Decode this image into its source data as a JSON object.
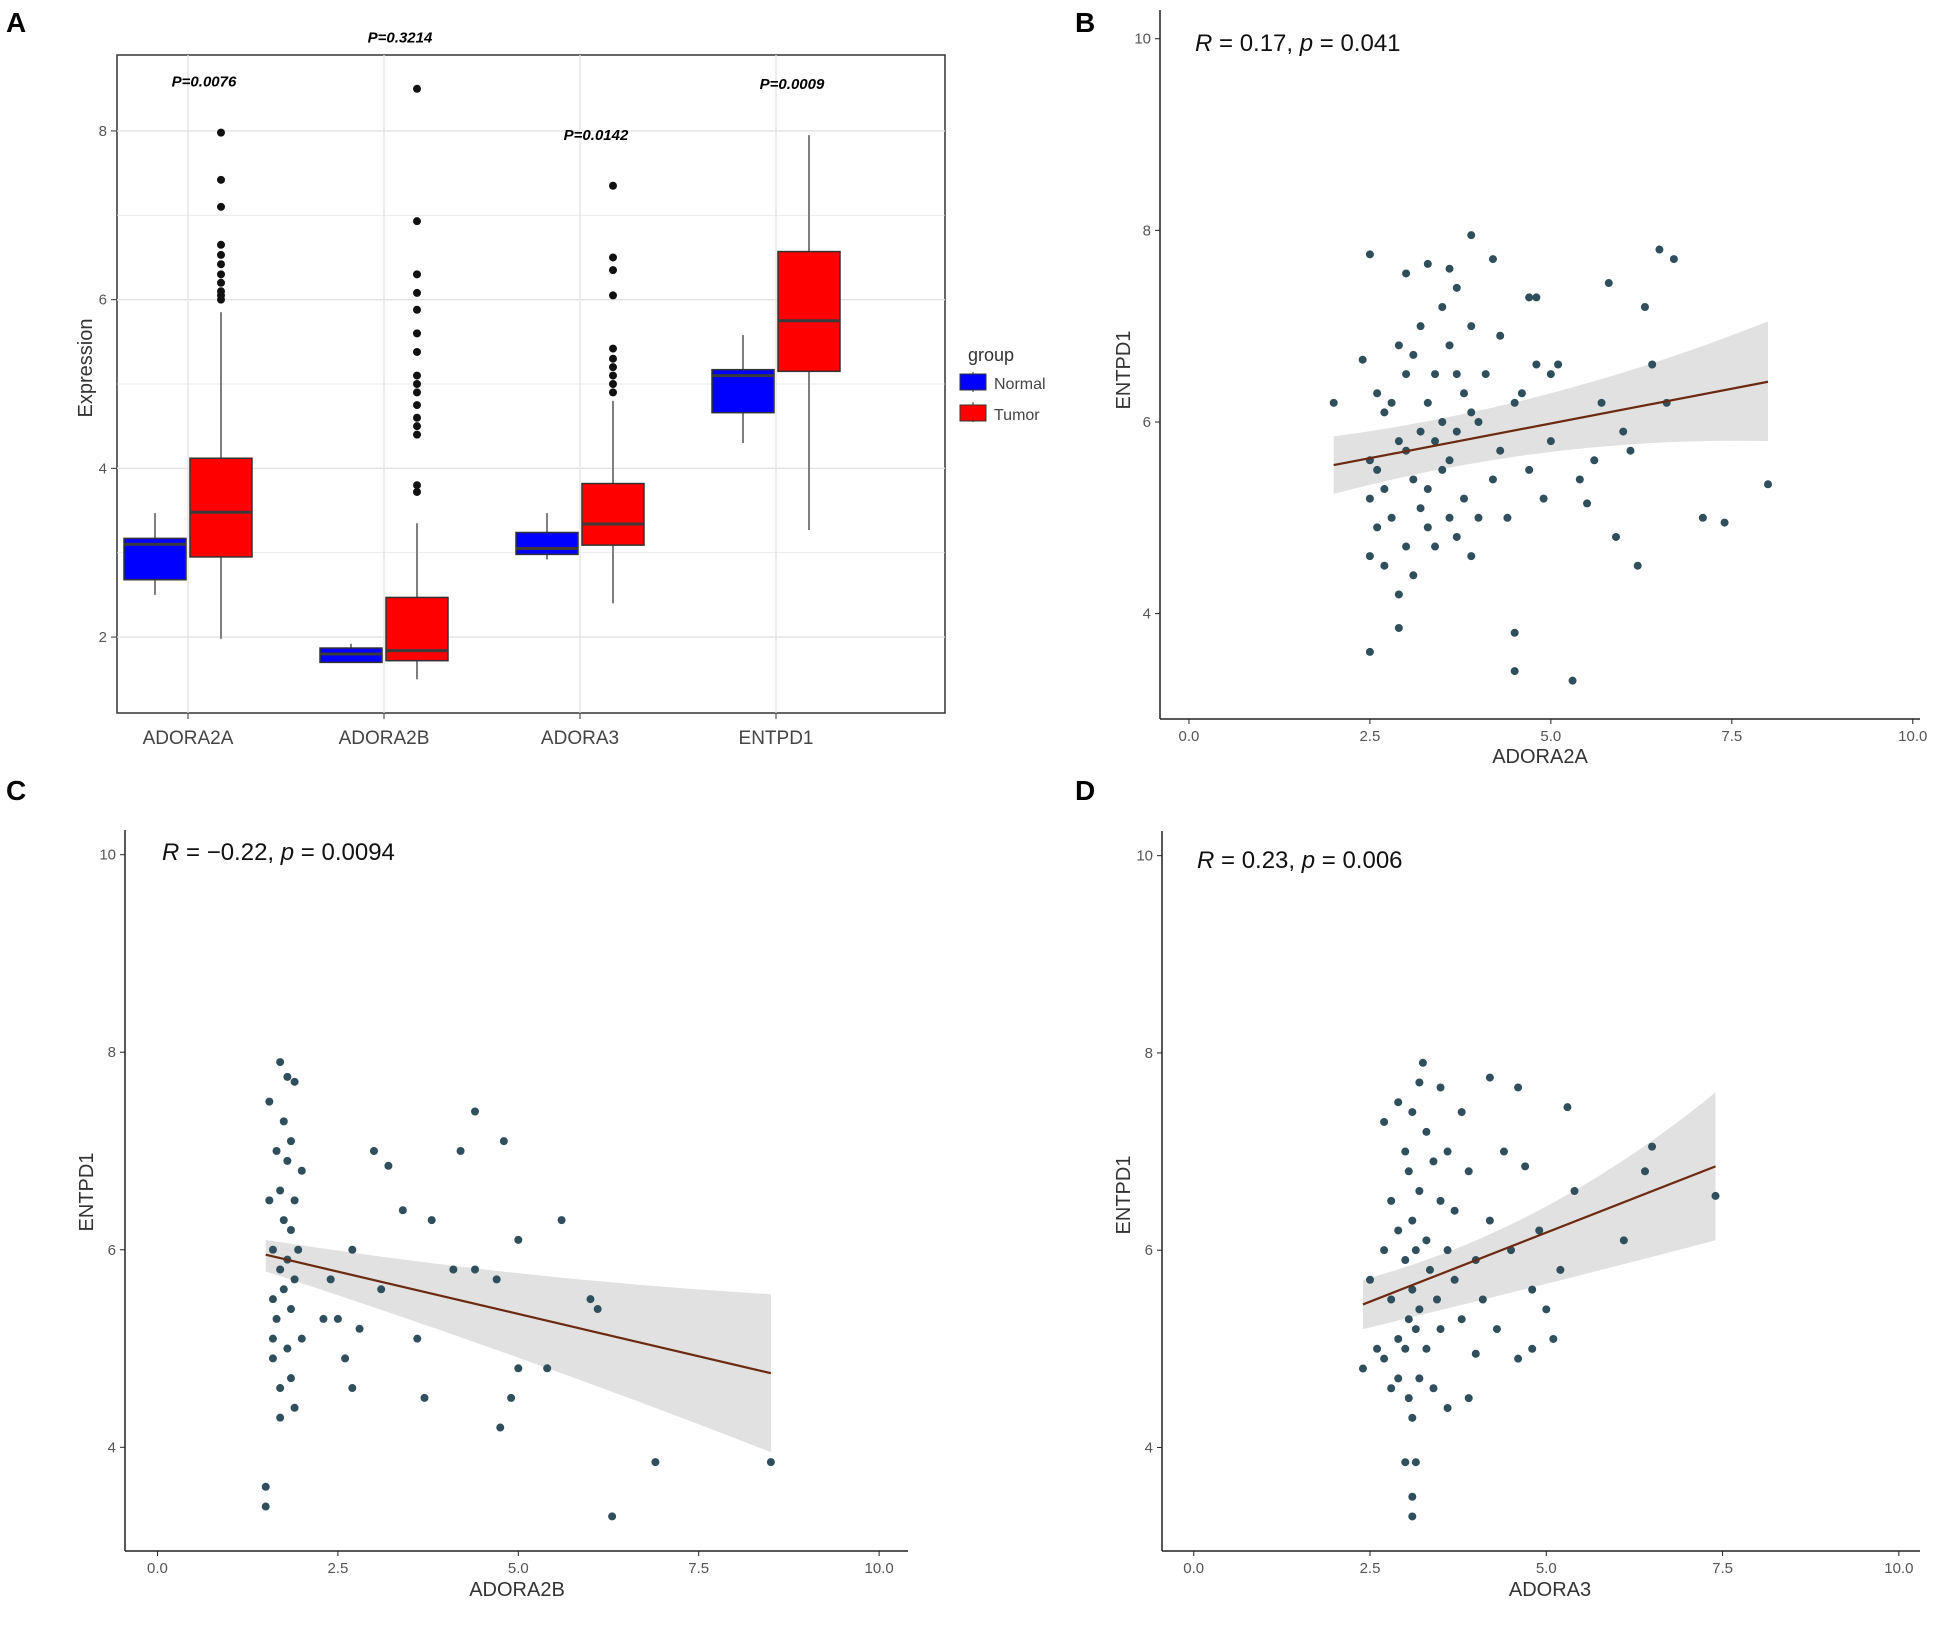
{
  "chart_data": [
    {
      "panel": "A",
      "type": "box",
      "ylabel": "Expression",
      "ylim": [
        1.1,
        8.9
      ],
      "yticks": [
        2,
        4,
        6,
        8
      ],
      "categories": [
        "ADORA2A",
        "ADORA2B",
        "ADORA3",
        "ENTPD1"
      ],
      "legend": {
        "title": "group",
        "position": "right",
        "entries": [
          {
            "label": "Normal",
            "color": "#0000ff"
          },
          {
            "label": "Tumor",
            "color": "#ff0000"
          }
        ]
      },
      "pvalues": [
        "P=0.0076",
        "P=0.3214",
        "P=0.0142",
        "P=0.0009"
      ],
      "series": [
        {
          "name": "Normal",
          "color": "#0000ff",
          "boxes": [
            {
              "min": 2.5,
              "q1": 2.68,
              "median": 3.1,
              "q3": 3.17,
              "max": 3.47,
              "outliers": []
            },
            {
              "min": 1.7,
              "q1": 1.7,
              "median": 1.8,
              "q3": 1.87,
              "max": 1.92,
              "outliers": []
            },
            {
              "min": 2.92,
              "q1": 2.98,
              "median": 3.05,
              "q3": 3.24,
              "max": 3.47,
              "outliers": []
            },
            {
              "min": 4.3,
              "q1": 4.66,
              "median": 5.1,
              "q3": 5.17,
              "max": 5.58,
              "outliers": []
            }
          ]
        },
        {
          "name": "Tumor",
          "color": "#ff0000",
          "boxes": [
            {
              "min": 1.98,
              "q1": 2.95,
              "median": 3.48,
              "q3": 4.12,
              "max": 5.85,
              "outliers": [
                6.0,
                6.05,
                6.1,
                6.2,
                6.3,
                6.42,
                6.53,
                6.65,
                7.1,
                7.42,
                7.98
              ]
            },
            {
              "min": 1.5,
              "q1": 1.72,
              "median": 1.84,
              "q3": 2.47,
              "max": 3.35,
              "outliers": [
                3.72,
                3.8,
                4.4,
                4.5,
                4.6,
                4.75,
                4.9,
                5.0,
                5.1,
                5.38,
                5.6,
                5.88,
                6.08,
                6.3,
                6.93,
                8.5
              ]
            },
            {
              "min": 2.4,
              "q1": 3.09,
              "median": 3.34,
              "q3": 3.82,
              "max": 4.8,
              "outliers": [
                4.9,
                5.0,
                5.1,
                5.2,
                5.3,
                5.42,
                6.05,
                6.35,
                6.5,
                7.35
              ]
            },
            {
              "min": 3.27,
              "q1": 5.15,
              "median": 5.75,
              "q3": 6.57,
              "max": 7.95,
              "outliers": []
            }
          ]
        }
      ]
    },
    {
      "panel": "B",
      "type": "scatter",
      "xlabel": "ADORA2A",
      "ylabel": "ENTPD1",
      "xlim": [
        -0.4,
        10.1
      ],
      "ylim": [
        2.9,
        10.3
      ],
      "xticks": [
        "0.0",
        "2.5",
        "5.0",
        "7.5",
        "10.0"
      ],
      "yticks": [
        "4",
        "6",
        "8",
        "10"
      ],
      "annotation": {
        "r_label": "R",
        "r_value": " = 0.17, ",
        "p_label": "p",
        "p_value": " = 0.041"
      },
      "fit": {
        "x0": 2.0,
        "y0": 5.55,
        "x1": 8.0,
        "y1": 6.42
      },
      "band": {
        "upper": [
          [
            2.0,
            5.85
          ],
          [
            5.0,
            6.15
          ],
          [
            8.0,
            7.05
          ]
        ],
        "lower": [
          [
            2.0,
            5.25
          ],
          [
            5.0,
            5.85
          ],
          [
            8.0,
            5.8
          ]
        ]
      },
      "points": [
        [
          2.0,
          6.2
        ],
        [
          2.4,
          6.65
        ],
        [
          2.5,
          7.75
        ],
        [
          2.5,
          5.6
        ],
        [
          2.5,
          5.2
        ],
        [
          2.5,
          4.6
        ],
        [
          2.5,
          3.6
        ],
        [
          2.6,
          6.3
        ],
        [
          2.6,
          5.5
        ],
        [
          2.6,
          4.9
        ],
        [
          2.7,
          6.1
        ],
        [
          2.7,
          5.3
        ],
        [
          2.7,
          4.5
        ],
        [
          2.8,
          6.2
        ],
        [
          2.8,
          5.0
        ],
        [
          2.9,
          6.8
        ],
        [
          2.9,
          5.8
        ],
        [
          2.9,
          4.2
        ],
        [
          2.9,
          3.85
        ],
        [
          3.0,
          7.55
        ],
        [
          3.0,
          6.5
        ],
        [
          3.0,
          5.7
        ],
        [
          3.0,
          4.7
        ],
        [
          3.1,
          6.7
        ],
        [
          3.1,
          5.4
        ],
        [
          3.1,
          4.4
        ],
        [
          3.2,
          7.0
        ],
        [
          3.2,
          5.9
        ],
        [
          3.2,
          5.1
        ],
        [
          3.3,
          7.65
        ],
        [
          3.3,
          6.2
        ],
        [
          3.3,
          5.3
        ],
        [
          3.3,
          4.9
        ],
        [
          3.4,
          6.5
        ],
        [
          3.4,
          5.8
        ],
        [
          3.4,
          4.7
        ],
        [
          3.5,
          7.2
        ],
        [
          3.5,
          6.0
        ],
        [
          3.5,
          5.5
        ],
        [
          3.6,
          7.6
        ],
        [
          3.6,
          6.8
        ],
        [
          3.6,
          5.6
        ],
        [
          3.6,
          5.0
        ],
        [
          3.7,
          7.4
        ],
        [
          3.7,
          6.5
        ],
        [
          3.7,
          5.9
        ],
        [
          3.7,
          4.8
        ],
        [
          3.8,
          6.3
        ],
        [
          3.8,
          5.2
        ],
        [
          3.9,
          7.95
        ],
        [
          3.9,
          7.0
        ],
        [
          3.9,
          6.1
        ],
        [
          3.9,
          4.6
        ],
        [
          4.0,
          6.0
        ],
        [
          4.0,
          5.0
        ],
        [
          4.1,
          6.5
        ],
        [
          4.2,
          7.7
        ],
        [
          4.2,
          5.4
        ],
        [
          4.3,
          6.9
        ],
        [
          4.3,
          5.7
        ],
        [
          4.4,
          5.0
        ],
        [
          4.5,
          6.2
        ],
        [
          4.5,
          3.8
        ],
        [
          4.5,
          3.4
        ],
        [
          4.6,
          6.3
        ],
        [
          4.7,
          7.3
        ],
        [
          4.7,
          5.5
        ],
        [
          4.8,
          6.6
        ],
        [
          4.8,
          7.3
        ],
        [
          4.9,
          5.2
        ],
        [
          5.0,
          6.5
        ],
        [
          5.0,
          5.8
        ],
        [
          5.1,
          6.6
        ],
        [
          5.3,
          3.3
        ],
        [
          5.4,
          5.4
        ],
        [
          5.5,
          5.15
        ],
        [
          5.6,
          5.6
        ],
        [
          5.7,
          6.2
        ],
        [
          5.8,
          7.45
        ],
        [
          5.9,
          4.8
        ],
        [
          6.0,
          5.9
        ],
        [
          6.1,
          5.7
        ],
        [
          6.2,
          4.5
        ],
        [
          6.3,
          7.2
        ],
        [
          6.4,
          6.6
        ],
        [
          6.5,
          7.8
        ],
        [
          6.6,
          6.2
        ],
        [
          6.7,
          7.7
        ],
        [
          7.1,
          5.0
        ],
        [
          7.4,
          4.95
        ],
        [
          8.0,
          5.35
        ]
      ]
    },
    {
      "panel": "C",
      "type": "scatter",
      "xlabel": "ADORA2B",
      "ylabel": "ENTPD1",
      "xlim": [
        -0.45,
        10.4
      ],
      "ylim": [
        2.95,
        10.25
      ],
      "xticks": [
        "0.0",
        "2.5",
        "5.0",
        "7.5",
        "10.0"
      ],
      "yticks": [
        "4",
        "6",
        "8",
        "10"
      ],
      "annotation": {
        "r_label": "R",
        "r_value": " = −0.22, ",
        "p_label": "p",
        "p_value": " = 0.0094"
      },
      "fit": {
        "x0": 1.5,
        "y0": 5.95,
        "x1": 8.5,
        "y1": 4.75
      },
      "band": {
        "upper": [
          [
            1.5,
            6.1
          ],
          [
            5.0,
            5.7
          ],
          [
            8.5,
            5.55
          ]
        ],
        "lower": [
          [
            1.5,
            5.78
          ],
          [
            5.0,
            4.95
          ],
          [
            8.5,
            3.95
          ]
        ]
      },
      "points": [
        [
          1.5,
          3.6
        ],
        [
          1.5,
          3.4
        ],
        [
          1.55,
          7.5
        ],
        [
          1.55,
          6.5
        ],
        [
          1.6,
          5.5
        ],
        [
          1.6,
          4.9
        ],
        [
          1.6,
          5.1
        ],
        [
          1.6,
          6.0
        ],
        [
          1.65,
          7.0
        ],
        [
          1.65,
          5.3
        ],
        [
          1.7,
          7.9
        ],
        [
          1.7,
          6.6
        ],
        [
          1.7,
          5.8
        ],
        [
          1.7,
          4.6
        ],
        [
          1.7,
          4.3
        ],
        [
          1.75,
          7.3
        ],
        [
          1.75,
          6.3
        ],
        [
          1.75,
          5.6
        ],
        [
          1.8,
          7.75
        ],
        [
          1.8,
          6.9
        ],
        [
          1.8,
          5.9
        ],
        [
          1.8,
          5.0
        ],
        [
          1.85,
          7.1
        ],
        [
          1.85,
          6.2
        ],
        [
          1.85,
          5.4
        ],
        [
          1.85,
          4.7
        ],
        [
          1.9,
          7.7
        ],
        [
          1.9,
          6.5
        ],
        [
          1.9,
          5.7
        ],
        [
          1.9,
          4.4
        ],
        [
          1.95,
          6.0
        ],
        [
          2.0,
          6.8
        ],
        [
          2.0,
          5.1
        ],
        [
          2.3,
          5.3
        ],
        [
          2.4,
          5.7
        ],
        [
          2.5,
          5.3
        ],
        [
          2.6,
          4.9
        ],
        [
          2.7,
          6.0
        ],
        [
          2.7,
          4.6
        ],
        [
          2.8,
          5.2
        ],
        [
          3.0,
          7.0
        ],
        [
          3.1,
          5.6
        ],
        [
          3.2,
          6.85
        ],
        [
          3.4,
          6.4
        ],
        [
          3.6,
          5.1
        ],
        [
          3.7,
          4.5
        ],
        [
          3.8,
          6.3
        ],
        [
          4.1,
          5.8
        ],
        [
          4.2,
          7.0
        ],
        [
          4.4,
          5.8
        ],
        [
          4.4,
          7.4
        ],
        [
          4.7,
          5.7
        ],
        [
          4.75,
          4.2
        ],
        [
          4.8,
          7.1
        ],
        [
          4.9,
          4.5
        ],
        [
          5.0,
          6.1
        ],
        [
          5.0,
          4.8
        ],
        [
          5.4,
          4.8
        ],
        [
          5.6,
          6.3
        ],
        [
          6.0,
          5.5
        ],
        [
          6.1,
          5.4
        ],
        [
          6.3,
          3.3
        ],
        [
          6.9,
          3.85
        ],
        [
          8.5,
          3.85
        ]
      ]
    },
    {
      "panel": "D",
      "type": "scatter",
      "xlabel": "ADORA3",
      "ylabel": "ENTPD1",
      "xlim": [
        -0.45,
        10.3
      ],
      "ylim": [
        2.95,
        10.25
      ],
      "xticks": [
        "0.0",
        "2.5",
        "5.0",
        "7.5",
        "10.0"
      ],
      "yticks": [
        "4",
        "6",
        "8",
        "10"
      ],
      "annotation": {
        "r_label": "R",
        "r_value": " = 0.23, ",
        "p_label": "p",
        "p_value": " = 0.006"
      },
      "fit": {
        "x0": 2.4,
        "y0": 5.45,
        "x1": 7.4,
        "y1": 6.85
      },
      "band": {
        "upper": [
          [
            2.4,
            5.7
          ],
          [
            5.0,
            6.2
          ],
          [
            7.4,
            7.6
          ]
        ],
        "lower": [
          [
            2.4,
            5.2
          ],
          [
            5.0,
            5.65
          ],
          [
            7.4,
            6.1
          ]
        ]
      },
      "points": [
        [
          2.4,
          4.8
        ],
        [
          2.5,
          5.7
        ],
        [
          2.6,
          5.0
        ],
        [
          2.7,
          7.3
        ],
        [
          2.7,
          6.0
        ],
        [
          2.7,
          4.9
        ],
        [
          2.8,
          6.5
        ],
        [
          2.8,
          5.5
        ],
        [
          2.8,
          4.6
        ],
        [
          2.9,
          7.5
        ],
        [
          2.9,
          6.2
        ],
        [
          2.9,
          5.1
        ],
        [
          2.9,
          4.7
        ],
        [
          3.0,
          7.0
        ],
        [
          3.0,
          5.9
        ],
        [
          3.0,
          5.0
        ],
        [
          3.0,
          3.85
        ],
        [
          3.05,
          6.8
        ],
        [
          3.05,
          5.3
        ],
        [
          3.05,
          4.5
        ],
        [
          3.1,
          7.4
        ],
        [
          3.1,
          6.3
        ],
        [
          3.1,
          5.6
        ],
        [
          3.1,
          4.3
        ],
        [
          3.1,
          3.5
        ],
        [
          3.1,
          3.3
        ],
        [
          3.15,
          6.0
        ],
        [
          3.15,
          5.2
        ],
        [
          3.15,
          3.85
        ],
        [
          3.2,
          7.7
        ],
        [
          3.2,
          6.6
        ],
        [
          3.2,
          5.4
        ],
        [
          3.2,
          4.7
        ],
        [
          3.25,
          7.9
        ],
        [
          3.3,
          7.2
        ],
        [
          3.3,
          6.1
        ],
        [
          3.3,
          5.0
        ],
        [
          3.35,
          5.8
        ],
        [
          3.4,
          6.9
        ],
        [
          3.4,
          4.6
        ],
        [
          3.45,
          5.5
        ],
        [
          3.5,
          7.65
        ],
        [
          3.5,
          6.5
        ],
        [
          3.5,
          5.2
        ],
        [
          3.6,
          7.0
        ],
        [
          3.6,
          6.0
        ],
        [
          3.6,
          4.4
        ],
        [
          3.7,
          6.4
        ],
        [
          3.7,
          5.7
        ],
        [
          3.8,
          7.4
        ],
        [
          3.8,
          5.3
        ],
        [
          3.9,
          6.8
        ],
        [
          3.9,
          4.5
        ],
        [
          4.0,
          5.9
        ],
        [
          4.0,
          4.95
        ],
        [
          4.1,
          5.5
        ],
        [
          4.2,
          7.75
        ],
        [
          4.2,
          6.3
        ],
        [
          4.3,
          5.2
        ],
        [
          4.4,
          7.0
        ],
        [
          4.5,
          6.0
        ],
        [
          4.6,
          7.65
        ],
        [
          4.6,
          4.9
        ],
        [
          4.7,
          6.85
        ],
        [
          4.8,
          5.6
        ],
        [
          4.8,
          5.0
        ],
        [
          4.9,
          6.2
        ],
        [
          5.0,
          5.4
        ],
        [
          5.1,
          5.1
        ],
        [
          5.2,
          5.8
        ],
        [
          5.3,
          7.45
        ],
        [
          5.4,
          6.6
        ],
        [
          6.1,
          6.1
        ],
        [
          6.4,
          6.8
        ],
        [
          6.5,
          7.05
        ],
        [
          7.4,
          6.55
        ]
      ]
    }
  ]
}
